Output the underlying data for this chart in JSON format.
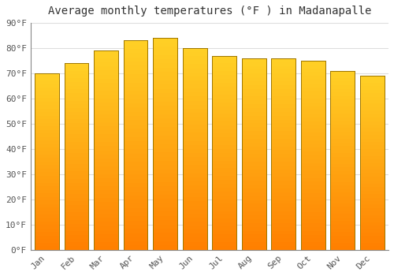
{
  "title": "Average monthly temperatures (°F ) in Madanapalle",
  "months": [
    "Jan",
    "Feb",
    "Mar",
    "Apr",
    "May",
    "Jun",
    "Jul",
    "Aug",
    "Sep",
    "Oct",
    "Nov",
    "Dec"
  ],
  "values": [
    70,
    74,
    79,
    83,
    84,
    80,
    77,
    76,
    76,
    75,
    71,
    69
  ],
  "bar_color_top": "#FFBA00",
  "bar_color_bottom": "#FF8C00",
  "bar_edge_color": "#B8860B",
  "background_color": "#FFFFFF",
  "plot_bg_color": "#FFFFFF",
  "grid_color": "#DDDDDD",
  "title_fontsize": 10,
  "tick_fontsize": 8,
  "ylim": [
    0,
    90
  ],
  "yticks": [
    0,
    10,
    20,
    30,
    40,
    50,
    60,
    70,
    80,
    90
  ],
  "bar_width": 0.82
}
